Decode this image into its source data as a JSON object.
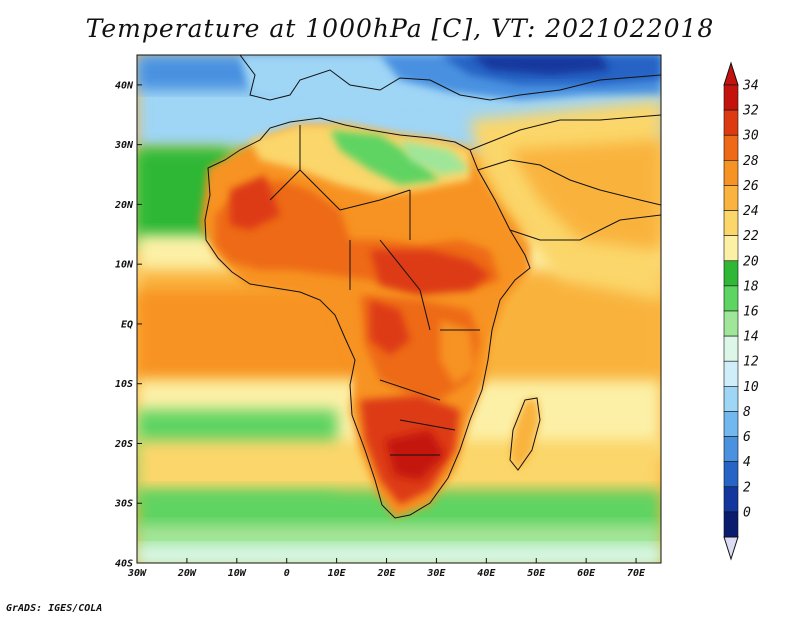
{
  "title": "Temperature at 1000hPa [C], VT: 2021022018",
  "credit": "GrADS: IGES/COLA",
  "map": {
    "variable": "Temperature at 1000hPa",
    "units": "C",
    "valid_time": "2021022018",
    "lon_range": [
      -30,
      75
    ],
    "lat_range": [
      -40,
      45
    ],
    "lat_ticks": [
      "40N",
      "30N",
      "20N",
      "10N",
      "EQ",
      "10S",
      "20S",
      "30S",
      "40S"
    ],
    "lat_values": [
      40,
      30,
      20,
      10,
      0,
      -10,
      -20,
      -30,
      -40
    ],
    "lon_ticks": [
      "30W",
      "20W",
      "10W",
      "0",
      "10E",
      "20E",
      "30E",
      "40E",
      "50E",
      "60E",
      "70E"
    ],
    "lon_values": [
      -30,
      -20,
      -10,
      0,
      10,
      20,
      30,
      40,
      50,
      60,
      70
    ]
  },
  "colorbar": {
    "labels": [
      "34",
      "32",
      "30",
      "28",
      "26",
      "24",
      "22",
      "20",
      "18",
      "16",
      "14",
      "12",
      "10",
      "8",
      "6",
      "4",
      "2",
      "0"
    ],
    "colors": [
      "#c4130e",
      "#dd3a12",
      "#ee6a19",
      "#f79324",
      "#f9b33e",
      "#fbd66a",
      "#fcf0a6",
      "#2fb735",
      "#5ed462",
      "#9fe69a",
      "#dcf7e8",
      "#cfeef9",
      "#9fd5f5",
      "#72b8ee",
      "#4a91e0",
      "#2864c5",
      "#13379d",
      "#0a1c6e"
    ],
    "under_color": "#dcdcf5",
    "over_color": "#c4130e"
  }
}
